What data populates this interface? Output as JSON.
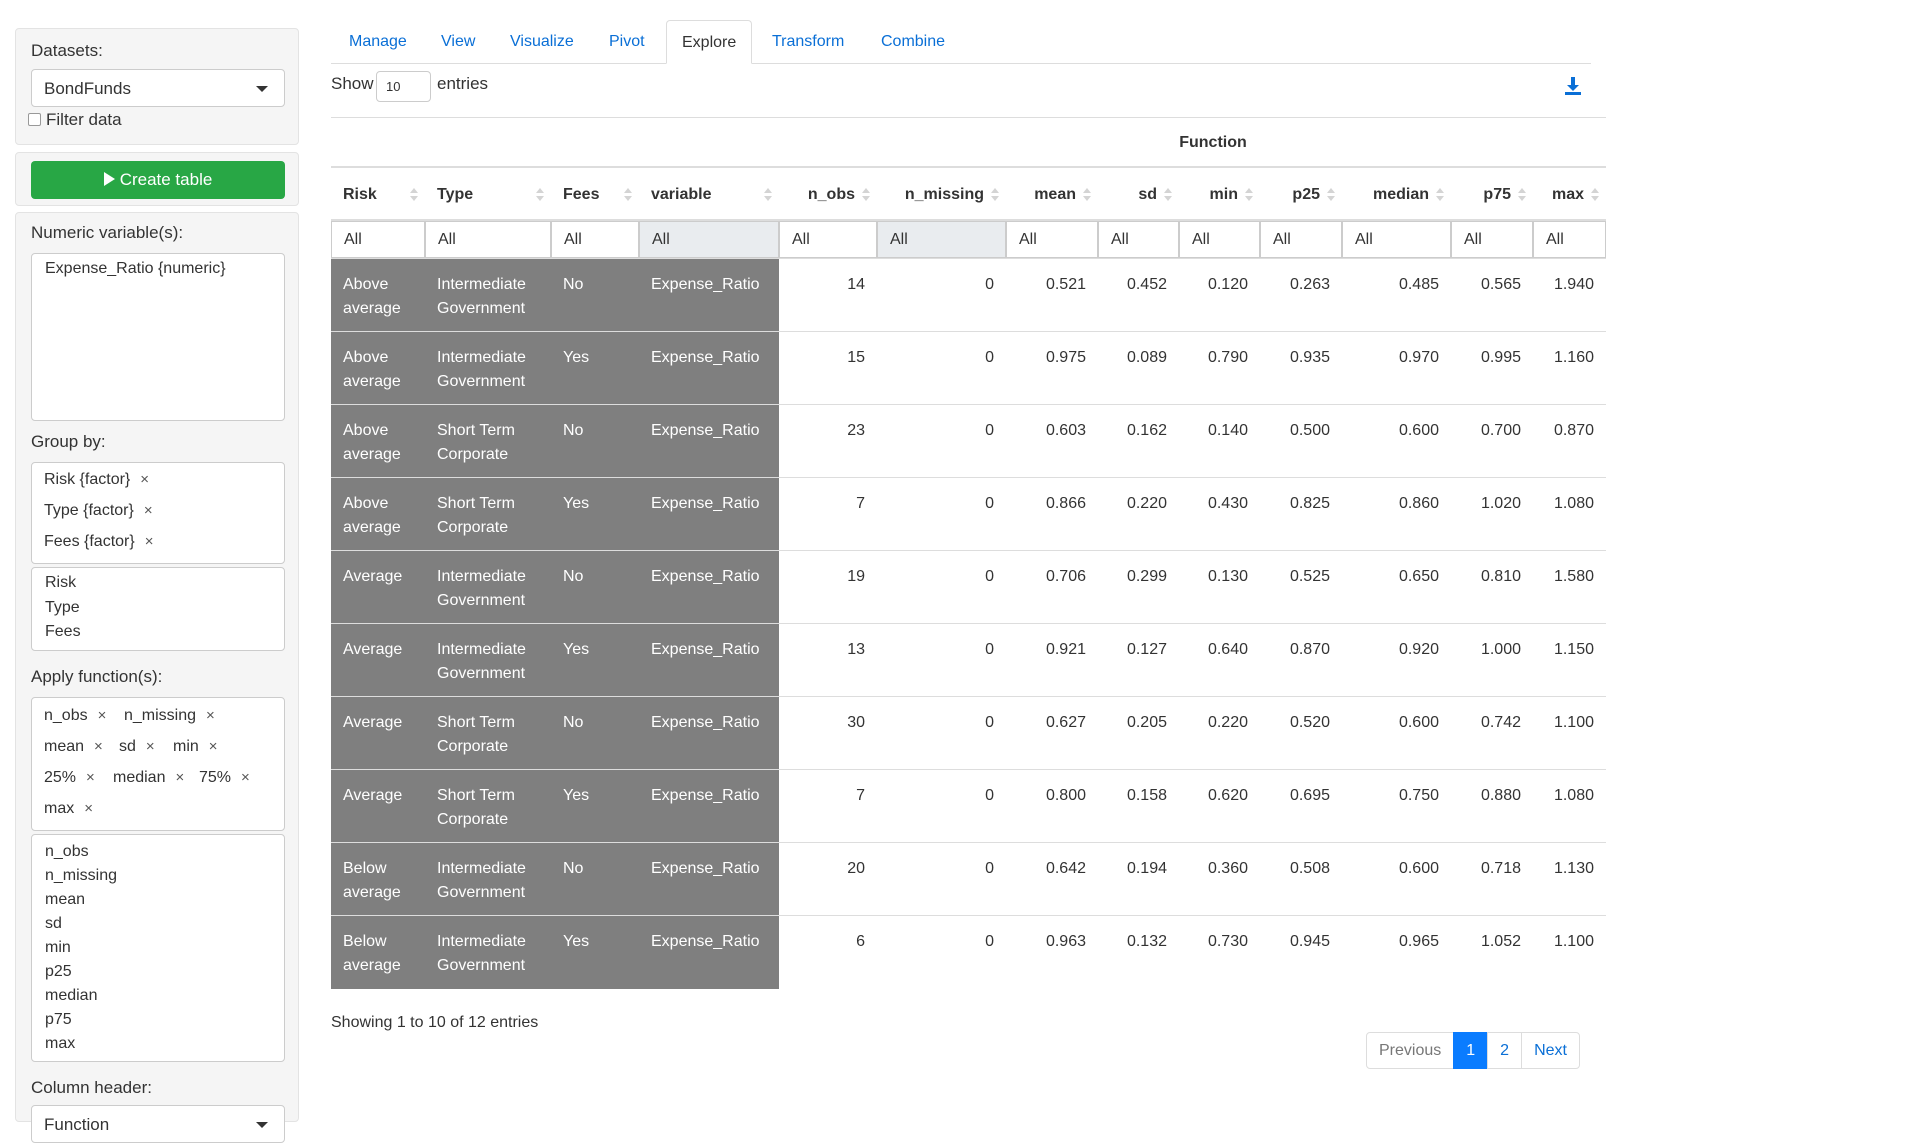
{
  "sidebar": {
    "datasets_label": "Datasets:",
    "dataset_value": "BondFunds",
    "filter_label": "Filter data",
    "create_label": "Create table",
    "numeric_label": "Numeric variable(s):",
    "numeric_value": "Expense_Ratio {numeric}",
    "groupby_label": "Group by:",
    "groupby_chips": [
      "Risk {factor}",
      "Type {factor}",
      "Fees {factor}"
    ],
    "groupby_options": [
      "Risk",
      "Type",
      "Fees"
    ],
    "apply_label": "Apply function(s):",
    "apply_chips": [
      "n_obs",
      "n_missing",
      "mean",
      "sd",
      "min",
      "25%",
      "median",
      "75%",
      "max"
    ],
    "apply_options": [
      "n_obs",
      "n_missing",
      "mean",
      "sd",
      "min",
      "p25",
      "median",
      "p75",
      "max"
    ],
    "colheader_label": "Column header:",
    "colheader_value": "Function",
    "remove_symbol": "×"
  },
  "tabs": [
    "Manage",
    "View",
    "Visualize",
    "Pivot",
    "Explore",
    "Transform",
    "Combine"
  ],
  "active_tab": "Explore",
  "length": {
    "show": "Show",
    "value": "10",
    "entries": "entries"
  },
  "download_icon": "download-icon",
  "table": {
    "group_header": "Function",
    "columns": [
      "Risk",
      "Type",
      "Fees",
      "variable",
      "n_obs",
      "n_missing",
      "mean",
      "sd",
      "min",
      "p25",
      "median",
      "p75",
      "max"
    ],
    "filter_all": "All",
    "rows": [
      [
        "Above average",
        "Intermediate Government",
        "No",
        "Expense_Ratio",
        "14",
        "0",
        "0.521",
        "0.452",
        "0.120",
        "0.263",
        "0.485",
        "0.565",
        "1.940"
      ],
      [
        "Above average",
        "Intermediate Government",
        "Yes",
        "Expense_Ratio",
        "15",
        "0",
        "0.975",
        "0.089",
        "0.790",
        "0.935",
        "0.970",
        "0.995",
        "1.160"
      ],
      [
        "Above average",
        "Short Term Corporate",
        "No",
        "Expense_Ratio",
        "23",
        "0",
        "0.603",
        "0.162",
        "0.140",
        "0.500",
        "0.600",
        "0.700",
        "0.870"
      ],
      [
        "Above average",
        "Short Term Corporate",
        "Yes",
        "Expense_Ratio",
        "7",
        "0",
        "0.866",
        "0.220",
        "0.430",
        "0.825",
        "0.860",
        "1.020",
        "1.080"
      ],
      [
        "Average",
        "Intermediate Government",
        "No",
        "Expense_Ratio",
        "19",
        "0",
        "0.706",
        "0.299",
        "0.130",
        "0.525",
        "0.650",
        "0.810",
        "1.580"
      ],
      [
        "Average",
        "Intermediate Government",
        "Yes",
        "Expense_Ratio",
        "13",
        "0",
        "0.921",
        "0.127",
        "0.640",
        "0.870",
        "0.920",
        "1.000",
        "1.150"
      ],
      [
        "Average",
        "Short Term Corporate",
        "No",
        "Expense_Ratio",
        "30",
        "0",
        "0.627",
        "0.205",
        "0.220",
        "0.520",
        "0.600",
        "0.742",
        "1.100"
      ],
      [
        "Average",
        "Short Term Corporate",
        "Yes",
        "Expense_Ratio",
        "7",
        "0",
        "0.800",
        "0.158",
        "0.620",
        "0.695",
        "0.750",
        "0.880",
        "1.080"
      ],
      [
        "Below average",
        "Intermediate Government",
        "No",
        "Expense_Ratio",
        "20",
        "0",
        "0.642",
        "0.194",
        "0.360",
        "0.508",
        "0.600",
        "0.718",
        "1.130"
      ],
      [
        "Below average",
        "Intermediate Government",
        "Yes",
        "Expense_Ratio",
        "6",
        "0",
        "0.963",
        "0.132",
        "0.730",
        "0.945",
        "0.965",
        "1.052",
        "1.100"
      ]
    ]
  },
  "info": "Showing 1 to 10 of 12 entries",
  "pagination": {
    "previous": "Previous",
    "pages": [
      "1",
      "2"
    ],
    "current": "1",
    "next": "Next"
  },
  "colors": {
    "accent": "#0a6fd6",
    "create_button": "#28a745",
    "group_cell": "#7f7f7f",
    "page_active": "#0a7cff"
  }
}
